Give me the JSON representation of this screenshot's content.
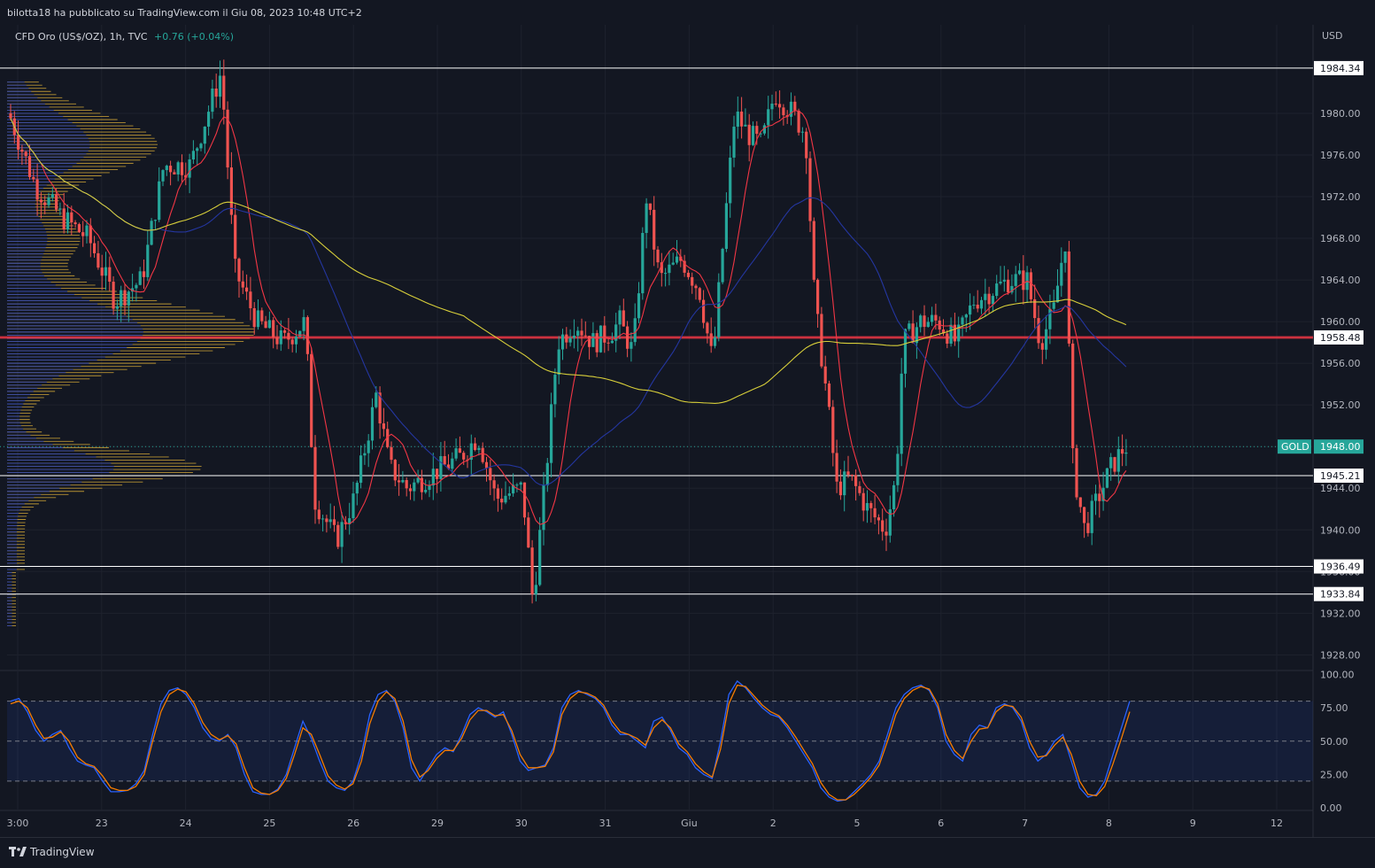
{
  "header": {
    "published_line": "bilotta18 ha pubblicato su TradingView.com il Giu 08, 2023 10:48 UTC+2"
  },
  "legend": {
    "symbol_text": "CFD Oro (US$/OZ), 1h, TVC",
    "change_text": "+0.76 (+0.04%)"
  },
  "footer": {
    "brand_label": "TradingView"
  },
  "colors": {
    "background": "#131722",
    "up": "#26a69a",
    "down": "#ef5350",
    "sma_short": "#f23645",
    "sma_mid": "#2436a0",
    "sma_long": "#d8cf3a",
    "volume_profile": "#c9a035",
    "stoch_k": "#2962ff",
    "stoch_d": "#f57c00"
  },
  "chart_data": [
    {
      "type": "candlestick",
      "symbol": "CFD Oro (US$/OZ)",
      "interval": "1h",
      "currency_label": "USD",
      "x_ticks": [
        "3:00",
        "23",
        "24",
        "25",
        "26",
        "29",
        "30",
        "31",
        "Giu",
        "2",
        "5",
        "6",
        "7",
        "8",
        "9",
        "12"
      ],
      "y_ticks": [
        "1928.00",
        "1932.00",
        "1936.00",
        "1940.00",
        "1944.00",
        "1948.00",
        "1952.00",
        "1956.00",
        "1960.00",
        "1964.00",
        "1968.00",
        "1972.00",
        "1976.00",
        "1980.00"
      ],
      "ylim": [
        1926.5,
        1988.5
      ],
      "horizontal_levels": [
        {
          "value": 1984.34,
          "label": "1984.34",
          "color": "#ffffff"
        },
        {
          "value": 1958.48,
          "label": "1958.48",
          "color": "#f23645"
        },
        {
          "value": 1945.21,
          "label": "1945.21",
          "color": "#ffffff"
        },
        {
          "value": 1936.49,
          "label": "1936.49",
          "color": "#ffffff"
        },
        {
          "value": 1933.84,
          "label": "1933.84",
          "color": "#ffffff"
        }
      ],
      "last_price": {
        "symbol_tag": "GOLD",
        "value": "1948.00"
      },
      "indicators": [
        "moving average (red)",
        "moving average (blue)",
        "moving average (yellow)",
        "volume profile"
      ]
    },
    {
      "type": "line",
      "indicator": "stochastic",
      "y_ticks": [
        "0.00",
        "25.00",
        "50.00",
        "75.00",
        "100.00"
      ],
      "ylim": [
        -2,
        103
      ],
      "band": [
        20,
        80
      ],
      "middle": 50,
      "series": [
        {
          "color": "#2962ff",
          "values": [
            80,
            82,
            72,
            58,
            50,
            55,
            58,
            45,
            35,
            32,
            30,
            20,
            12,
            12,
            13,
            18,
            28,
            55,
            78,
            88,
            90,
            85,
            75,
            60,
            52,
            50,
            55,
            45,
            25,
            12,
            10,
            10,
            14,
            25,
            45,
            65,
            52,
            35,
            20,
            15,
            13,
            20,
            40,
            70,
            85,
            88,
            80,
            60,
            30,
            20,
            30,
            40,
            45,
            42,
            55,
            70,
            75,
            72,
            68,
            72,
            55,
            35,
            28,
            30,
            32,
            45,
            75,
            85,
            88,
            85,
            82,
            75,
            62,
            55,
            55,
            50,
            45,
            65,
            68,
            58,
            45,
            40,
            30,
            25,
            22,
            50,
            85,
            95,
            90,
            82,
            75,
            70,
            68,
            60,
            50,
            40,
            30,
            15,
            8,
            5,
            6,
            12,
            18,
            25,
            35,
            55,
            75,
            85,
            90,
            92,
            88,
            75,
            50,
            40,
            35,
            55,
            62,
            60,
            75,
            78,
            75,
            65,
            45,
            35,
            40,
            50,
            55,
            35,
            15,
            8,
            10,
            20,
            40,
            60,
            80
          ]
        },
        {
          "color": "#f57c00",
          "values": [
            78,
            80,
            75,
            62,
            52,
            53,
            57,
            50,
            38,
            33,
            31,
            24,
            15,
            13,
            13,
            16,
            25,
            50,
            72,
            85,
            89,
            87,
            78,
            64,
            55,
            51,
            54,
            48,
            30,
            15,
            11,
            10,
            13,
            22,
            40,
            60,
            55,
            40,
            24,
            17,
            14,
            18,
            35,
            63,
            80,
            87,
            82,
            65,
            36,
            23,
            28,
            37,
            43,
            43,
            52,
            66,
            73,
            73,
            69,
            70,
            58,
            40,
            30,
            30,
            31,
            42,
            70,
            82,
            87,
            86,
            83,
            77,
            65,
            57,
            55,
            52,
            47,
            60,
            66,
            60,
            48,
            42,
            33,
            27,
            23,
            44,
            78,
            92,
            91,
            84,
            77,
            72,
            69,
            62,
            53,
            43,
            33,
            19,
            10,
            6,
            6,
            10,
            16,
            23,
            32,
            50,
            70,
            82,
            88,
            91,
            89,
            78,
            55,
            43,
            37,
            50,
            59,
            60,
            72,
            77,
            76,
            68,
            50,
            38,
            39,
            47,
            53,
            40,
            20,
            10,
            9,
            16,
            33,
            52,
            72
          ]
        }
      ]
    }
  ]
}
